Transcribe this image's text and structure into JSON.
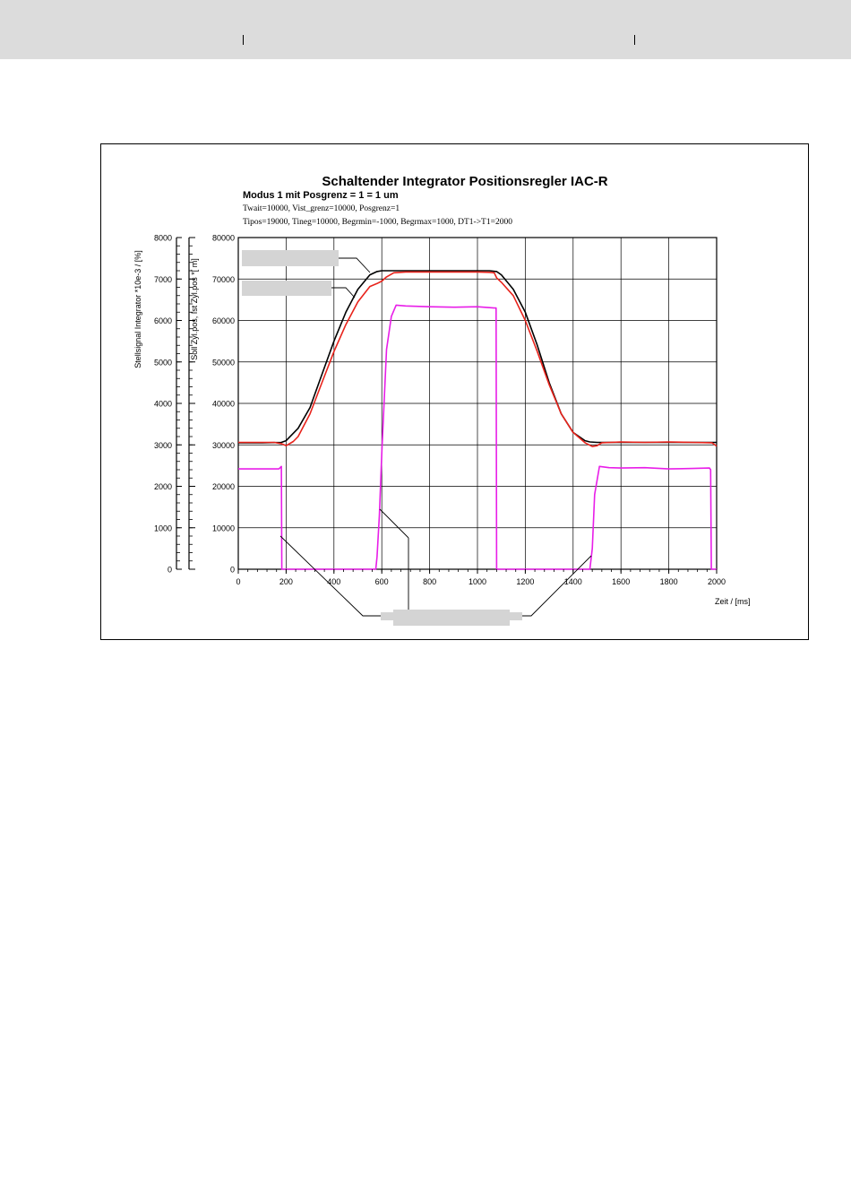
{
  "header": {},
  "chart_data": {
    "type": "line",
    "title": "Schaltender Integrator Positionsregler IAC-R",
    "subtitle": "Modus 1 mit Posgrenz = 1 = 1 um",
    "param_line_1": "Twait=10000, Vist_grenz=10000, Posgrenz=1",
    "param_line_2": "Tipos=19000, Tineg=10000, Begrmin=-1000, Begrmax=1000, DT1->T1=2000",
    "xlabel": "Zeit / [ms]",
    "ylabel_left": "Stellsignal Integrator *10e-3 / [%]",
    "ylabel_right": "Soll Zyl.pos, Ist Zyl.pos *[  m]",
    "xlim": [
      0,
      2000
    ],
    "ylim": [
      0,
      80000
    ],
    "ylim_left": [
      0,
      8000
    ],
    "x_ticks": [
      "0",
      "200",
      "400",
      "600",
      "800",
      "1000",
      "1200",
      "1400",
      "1600",
      "1800",
      "2000"
    ],
    "y_ticks": [
      "0",
      "10000",
      "20000",
      "30000",
      "40000",
      "50000",
      "60000",
      "70000",
      "80000"
    ],
    "y_ticks_left": [
      "0",
      "1000",
      "2000",
      "3000",
      "4000",
      "5000",
      "6000",
      "7000",
      "8000"
    ],
    "grid": true,
    "colors": {
      "soll": "#000000",
      "ist": "#e8231b",
      "stell": "#e81ee8"
    },
    "series": [
      {
        "color": "#000000",
        "x": [
          0,
          100,
          180,
          200,
          250,
          300,
          350,
          400,
          450,
          500,
          550,
          580,
          600,
          700,
          800,
          900,
          1000,
          1050,
          1080,
          1100,
          1150,
          1200,
          1250,
          1300,
          1350,
          1400,
          1450,
          1470,
          1500,
          1600,
          1700,
          1800,
          1900,
          2000
        ],
        "y": [
          30500,
          30500,
          30600,
          31000,
          34000,
          39000,
          47000,
          55000,
          62000,
          67500,
          71000,
          71800,
          72000,
          72000,
          72000,
          72000,
          72000,
          72000,
          71800,
          71000,
          67500,
          62000,
          54000,
          45000,
          37500,
          33000,
          31000,
          30700,
          30600,
          30600,
          30600,
          30600,
          30600,
          30600
        ]
      },
      {
        "color": "#e8231b",
        "x": [
          0,
          100,
          150,
          180,
          200,
          230,
          250,
          300,
          350,
          400,
          450,
          500,
          550,
          580,
          600,
          620,
          650,
          700,
          800,
          900,
          1000,
          1050,
          1070,
          1080,
          1100,
          1150,
          1200,
          1250,
          1300,
          1350,
          1400,
          1450,
          1480,
          1500,
          1520,
          1600,
          1700,
          1800,
          1900,
          1980,
          2000
        ],
        "y": [
          30600,
          30600,
          30600,
          30300,
          29800,
          30800,
          32000,
          37500,
          45000,
          52500,
          59000,
          64500,
          68200,
          68900,
          69500,
          70500,
          71500,
          71700,
          71700,
          71700,
          71700,
          71600,
          71500,
          70300,
          69200,
          66000,
          60000,
          52500,
          44500,
          37500,
          33000,
          30500,
          29600,
          29800,
          30500,
          30700,
          30600,
          30700,
          30600,
          30500,
          29700
        ]
      },
      {
        "color": "#e81ee8",
        "x": [
          0,
          170,
          180,
          182,
          575,
          580,
          590,
          600,
          620,
          640,
          660,
          700,
          800,
          900,
          1000,
          1070,
          1078,
          1080,
          1470,
          1480,
          1490,
          1510,
          1550,
          1600,
          1700,
          1800,
          1900,
          1970,
          1975,
          1978,
          2000
        ],
        "y": [
          24200,
          24200,
          24800,
          0,
          0,
          3000,
          13000,
          28000,
          53000,
          61000,
          63700,
          63500,
          63300,
          63200,
          63300,
          63000,
          63000,
          0,
          0,
          5000,
          18000,
          24800,
          24500,
          24400,
          24500,
          24200,
          24300,
          24400,
          24000,
          0,
          0
        ]
      }
    ]
  }
}
